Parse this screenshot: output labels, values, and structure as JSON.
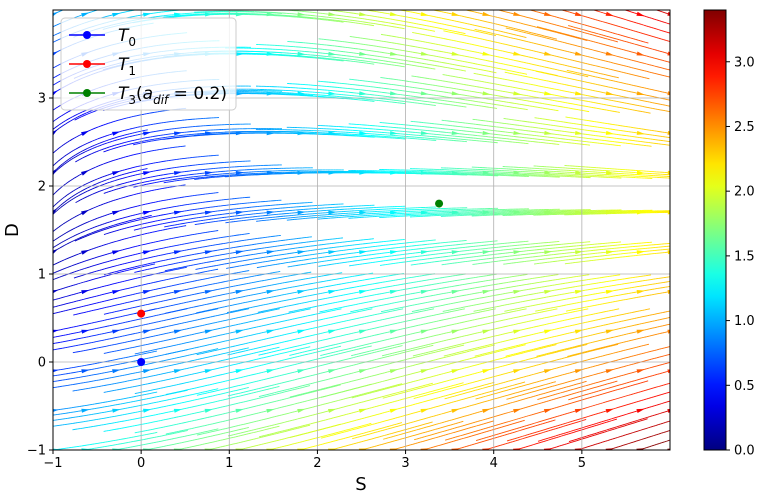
{
  "chart_data": {
    "type": "streamplot",
    "xlabel": "S",
    "ylabel": "D",
    "xlim": [
      -1,
      6
    ],
    "ylim": [
      -1,
      4
    ],
    "xticks": [
      -1,
      0,
      1,
      2,
      3,
      4,
      5
    ],
    "yticks": [
      -1,
      0,
      1,
      2,
      3
    ],
    "grid": true,
    "legend_position": "top-left",
    "colormap": "jet",
    "colorbar": {
      "min": 0,
      "max": 3.4,
      "ticks": [
        0.0,
        0.5,
        1.0,
        1.5,
        2.0,
        2.5,
        3.0
      ]
    },
    "series": [
      {
        "name": "T_0",
        "label_main": "T",
        "label_sub": "0",
        "label_paren": "",
        "color": "#0000ff",
        "points": [
          [
            0,
            0
          ]
        ]
      },
      {
        "name": "T_1",
        "label_main": "T",
        "label_sub": "1",
        "label_paren": "",
        "color": "#ff0000",
        "points": [
          [
            0,
            0.55
          ]
        ]
      },
      {
        "name": "T_3(a_dif = 0.2)",
        "label_main": "T",
        "label_sub": "3",
        "label_paren": "a",
        "label_paren_sub": "dif",
        "label_paren_rest": " = 0.2)",
        "color": "#008000",
        "points": [
          [
            3.38,
            1.8
          ]
        ]
      }
    ]
  }
}
